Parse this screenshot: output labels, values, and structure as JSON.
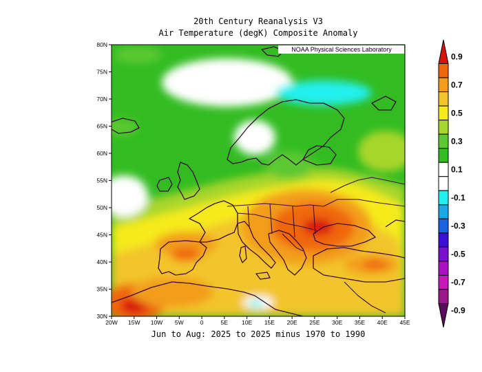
{
  "title": {
    "line1": "20th Century Reanalysis V3",
    "line2": "Air Temperature (degK) Composite Anomaly"
  },
  "subtitle": "Jun to Aug: 2025 to 2025 minus 1970 to 1990",
  "credit": "NOAA Physical Sciences Laboratory",
  "map": {
    "lon_range": [
      -20,
      45
    ],
    "lat_range": [
      30,
      80
    ],
    "lon_ticks": [
      "20W",
      "15W",
      "10W",
      "5W",
      "0",
      "5E",
      "10E",
      "15E",
      "20E",
      "25E",
      "30E",
      "35E",
      "40E",
      "45E"
    ],
    "lat_ticks": [
      "80N",
      "75N",
      "70N",
      "65N",
      "60N",
      "55N",
      "50N",
      "45N",
      "40N",
      "35N",
      "30N"
    ]
  },
  "colorbar": {
    "labels": [
      "0.9",
      "0.7",
      "0.5",
      "0.3",
      "0.1",
      "-0.1",
      "-0.3",
      "-0.5",
      "-0.7",
      "-0.9"
    ],
    "colors": [
      "#d8140a",
      "#f0660a",
      "#f29d1c",
      "#f2c52a",
      "#f5ea1a",
      "#a7d62c",
      "#5cc832",
      "#32bc21",
      "#ffffff",
      "#ffffff",
      "#22f0ee",
      "#1aa7e6",
      "#1a63e3",
      "#3a10d8",
      "#7a10ce",
      "#ad10c4",
      "#c818ba",
      "#9c198c",
      "#5a0c5a"
    ]
  }
}
